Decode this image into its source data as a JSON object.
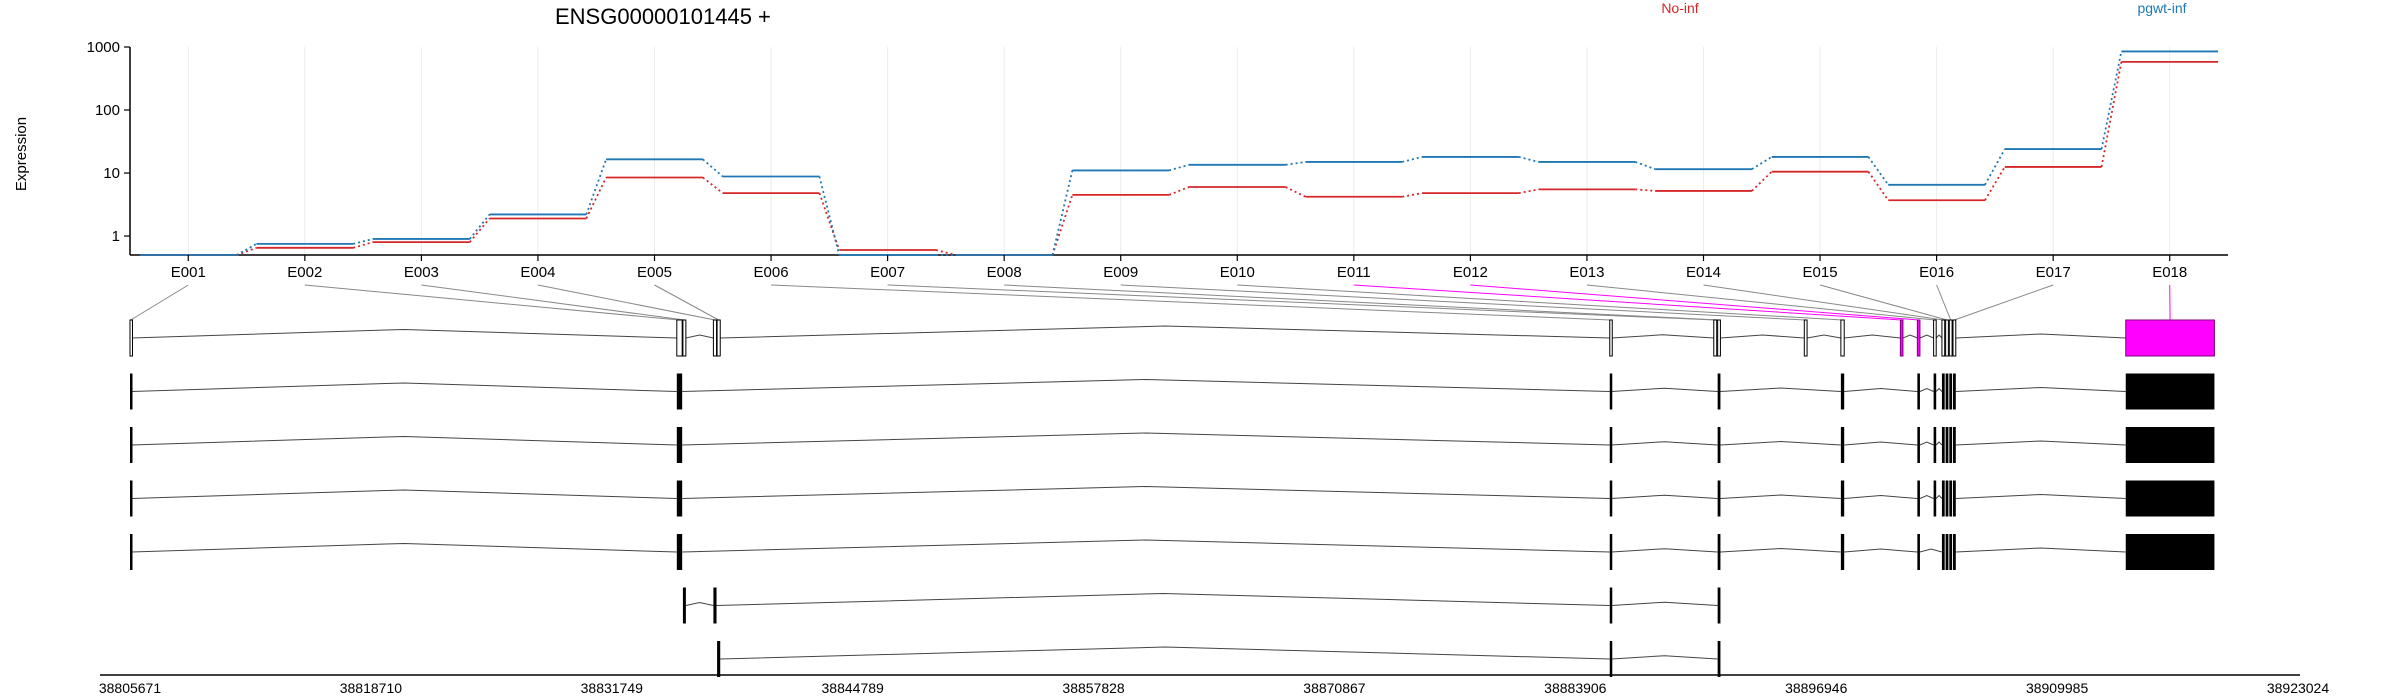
{
  "chart_data": {
    "type": "line",
    "title": "ENSG00000101445 +",
    "ylabel": "Expression",
    "yscale": "log",
    "yticks": [
      1,
      10,
      100,
      1000
    ],
    "ylim": [
      0.5,
      1000
    ],
    "grid": true,
    "legend_position": "top",
    "categories": [
      "E001",
      "E002",
      "E003",
      "E004",
      "E005",
      "E006",
      "E007",
      "E008",
      "E009",
      "E010",
      "E011",
      "E012",
      "E013",
      "E014",
      "E015",
      "E016",
      "E017",
      "E018"
    ],
    "series": [
      {
        "name": "No-inf",
        "color": "#d62728",
        "values": [
          0.5,
          0.65,
          0.8,
          1.9,
          8.5,
          4.8,
          0.6,
          0.5,
          4.5,
          6.0,
          4.2,
          4.8,
          5.5,
          5.2,
          10.5,
          3.7,
          12.5,
          580
        ]
      },
      {
        "name": "pgwt-inf",
        "color": "#1f77b4",
        "values": [
          0.5,
          0.75,
          0.9,
          2.2,
          16.5,
          8.8,
          0.5,
          0.5,
          11.0,
          13.5,
          15.0,
          18.0,
          15.0,
          11.5,
          18.0,
          6.5,
          24.0,
          850
        ]
      }
    ],
    "highlight_color": "#ff00ff",
    "genomic_axis": {
      "range": [
        38805671,
        38923024
      ],
      "tick_labels": [
        "38805671",
        "38818710",
        "38831749",
        "38844789",
        "38857828",
        "38870867",
        "38883906",
        "38896946",
        "38909985",
        "38923024"
      ]
    },
    "exon_coordinates": [
      [
        38805671,
        38805750
      ],
      [
        38835270,
        38835560
      ],
      [
        38835600,
        38835760
      ],
      [
        38837250,
        38837420
      ],
      [
        38837450,
        38837620
      ],
      [
        38885770,
        38885860
      ],
      [
        38891400,
        38891560
      ],
      [
        38891610,
        38891760
      ],
      [
        38896300,
        38896450
      ],
      [
        38898280,
        38898460
      ],
      [
        38901500,
        38901640
      ],
      [
        38902420,
        38902560
      ],
      [
        38903300,
        38903440
      ],
      [
        38903750,
        38903900
      ],
      [
        38903950,
        38904100
      ],
      [
        38904150,
        38904300
      ],
      [
        38904350,
        38904500
      ],
      [
        38913700,
        38918500
      ]
    ],
    "highlighted_exons": [
      "E011",
      "E012",
      "E018"
    ],
    "transcripts": [
      {
        "exons": [
          "E001",
          "E002",
          "E003",
          "E004",
          "E005",
          "E006",
          "E007",
          "E008",
          "E009",
          "E010",
          "E011",
          "E012",
          "E013",
          "E014",
          "E015",
          "E016",
          "E017",
          "E018"
        ],
        "open": true
      },
      {
        "exons": [
          "E001",
          "E002",
          "E006",
          "E008",
          "E010",
          "E012",
          "E013",
          "E014",
          "E015",
          "E016",
          "E017",
          "E018"
        ],
        "open": false
      },
      {
        "exons": [
          "E001",
          "E002",
          "E006",
          "E008",
          "E010",
          "E012",
          "E013",
          "E014",
          "E015",
          "E016",
          "E017",
          "E018"
        ],
        "open": false
      },
      {
        "exons": [
          "E001",
          "E002",
          "E006",
          "E008",
          "E010",
          "E012",
          "E013",
          "E014",
          "E015",
          "E016",
          "E017",
          "E018"
        ],
        "open": false
      },
      {
        "exons": [
          "E001",
          "E002",
          "E006",
          "E008",
          "E010",
          "E012",
          "E014",
          "E015",
          "E016",
          "E017",
          "E018"
        ],
        "open": false
      },
      {
        "exons": [
          "E003",
          "E004",
          "E006",
          "E008"
        ],
        "open": false
      },
      {
        "exons": [
          "E005",
          "E006",
          "E008"
        ],
        "open": false
      }
    ]
  }
}
